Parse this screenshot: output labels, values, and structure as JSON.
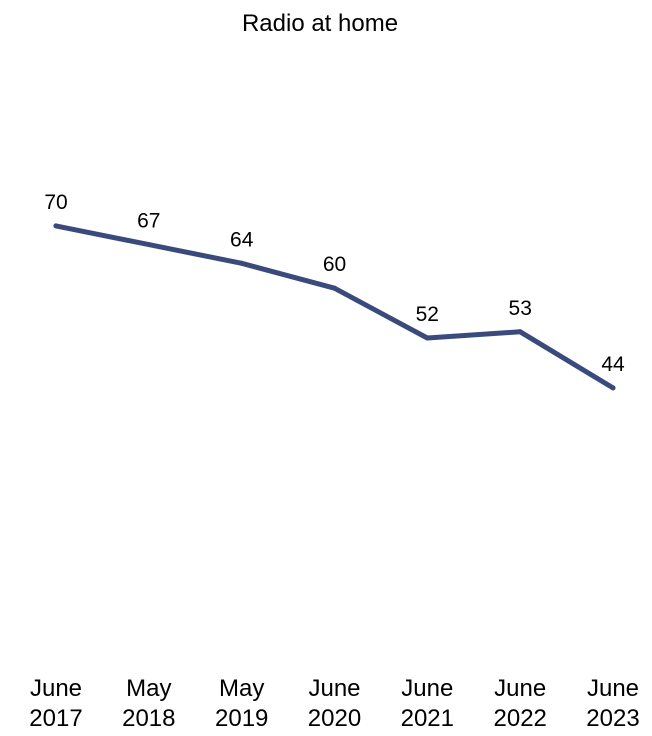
{
  "chart_data": {
    "type": "line",
    "title": "Radio at home",
    "xlabel": "",
    "ylabel": "",
    "categories": [
      [
        "June",
        "2017"
      ],
      [
        "May",
        "2018"
      ],
      [
        "May",
        "2019"
      ],
      [
        "June",
        "2020"
      ],
      [
        "June",
        "2021"
      ],
      [
        "June",
        "2022"
      ],
      [
        "June",
        "2023"
      ]
    ],
    "series": [
      {
        "values": [
          70,
          67,
          64,
          60,
          52,
          53,
          44
        ],
        "color": "#3a4a7d"
      }
    ],
    "ylim": [
      0,
      100
    ],
    "grid": false,
    "legend": "none"
  }
}
